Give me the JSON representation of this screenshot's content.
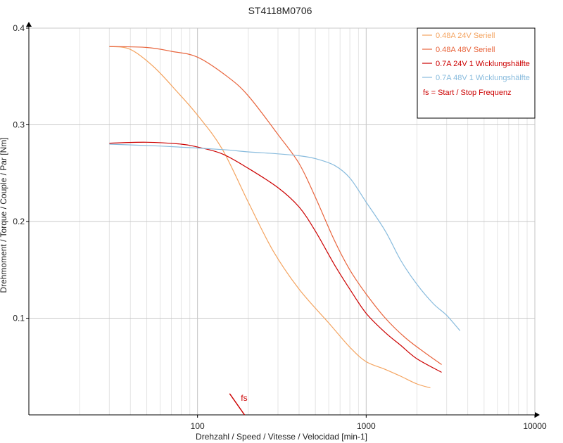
{
  "chart_data": {
    "type": "line",
    "title": "ST4118M0706",
    "xlabel": "Drehzahl / Speed / Vitesse / Velocidad [min-1]",
    "ylabel": "Drehmoment / Torque / Couple / Par [Nm]",
    "x_scale": "log",
    "xlim": [
      10,
      10000
    ],
    "ylim": [
      0,
      0.4
    ],
    "x_ticks": [
      100,
      1000,
      10000
    ],
    "x_tick_labels": [
      "100",
      "1000",
      "10000"
    ],
    "y_ticks": [
      0.1,
      0.2,
      0.3,
      0.4
    ],
    "y_tick_labels": [
      "0.1",
      "0.2",
      "0.3",
      "0.4"
    ],
    "grid": true,
    "legend_position": "top-right",
    "series": [
      {
        "name": "0.48A  24V  Seriell",
        "color": "#f4a460",
        "x": [
          30,
          40,
          55,
          75,
          100,
          140,
          200,
          280,
          400,
          600,
          800,
          1000,
          1300,
          1600,
          2000,
          2400
        ],
        "y": [
          0.381,
          0.378,
          0.36,
          0.335,
          0.31,
          0.275,
          0.22,
          0.17,
          0.13,
          0.095,
          0.07,
          0.055,
          0.047,
          0.04,
          0.032,
          0.028
        ]
      },
      {
        "name": "0.48A  48V  Seriell",
        "color": "#e8643c",
        "x": [
          30,
          50,
          70,
          100,
          150,
          200,
          300,
          400,
          500,
          650,
          800,
          1000,
          1300,
          1700,
          2200,
          2800
        ],
        "y": [
          0.381,
          0.38,
          0.376,
          0.37,
          0.35,
          0.33,
          0.29,
          0.26,
          0.225,
          0.18,
          0.15,
          0.125,
          0.1,
          0.08,
          0.065,
          0.052
        ]
      },
      {
        "name": "0.7A  24V  1 Wicklungshälfte",
        "color": "#cc0000",
        "x": [
          30,
          50,
          80,
          100,
          140,
          200,
          300,
          400,
          500,
          650,
          800,
          1000,
          1300,
          1600,
          2000,
          2800
        ],
        "y": [
          0.281,
          0.282,
          0.28,
          0.277,
          0.27,
          0.255,
          0.235,
          0.215,
          0.19,
          0.155,
          0.13,
          0.105,
          0.085,
          0.072,
          0.058,
          0.044
        ]
      },
      {
        "name": "0.7A  48V  1 Wicklungshälfte",
        "color": "#88bbdd",
        "x": [
          30,
          60,
          100,
          150,
          200,
          300,
          400,
          500,
          650,
          800,
          1000,
          1300,
          1600,
          2000,
          2500,
          3000,
          3600
        ],
        "y": [
          0.28,
          0.278,
          0.276,
          0.274,
          0.272,
          0.27,
          0.268,
          0.265,
          0.258,
          0.245,
          0.22,
          0.19,
          0.16,
          0.135,
          0.115,
          0.103,
          0.087
        ]
      }
    ],
    "annotations": [
      {
        "text": "fs = Start / Stop Frequenz",
        "color": "#cc0000"
      },
      {
        "text": "fs",
        "color": "#cc0000",
        "x": 155,
        "y": 0.011
      }
    ],
    "fs_marker": {
      "x1": 155,
      "y1": 0.022,
      "x2": 190,
      "y2": 0
    }
  }
}
